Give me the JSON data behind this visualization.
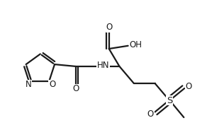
{
  "background_color": "#ffffff",
  "line_color": "#1a1a1a",
  "line_width": 1.6,
  "font_size": 8.5,
  "xlim": [
    0,
    10
  ],
  "ylim": [
    0,
    6.5
  ]
}
